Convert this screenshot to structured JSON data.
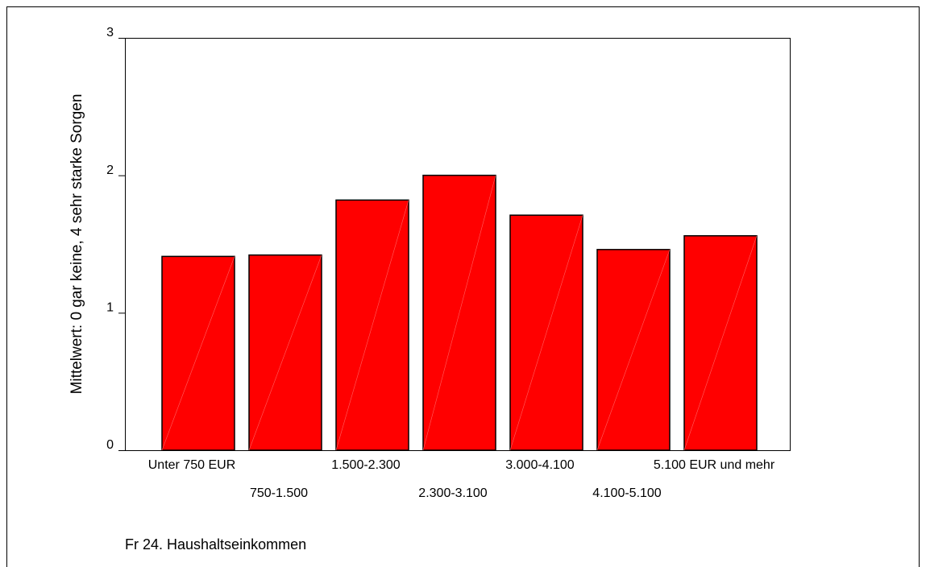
{
  "chart_data": {
    "type": "bar",
    "xlabel": "Fr 24. Haushaltseinkommen",
    "ylabel": "Mittelwert: 0 gar keine, 4 sehr starke Sorgen",
    "categories": [
      "Unter 750 EUR",
      "750-1.500",
      "1.500-2.300",
      "2.300-3.100",
      "3.000-4.100",
      "4.100-5.100",
      "5.100 EUR und mehr"
    ],
    "values": [
      1.41,
      1.42,
      1.82,
      2.0,
      1.71,
      1.46,
      1.56
    ],
    "color": "#ff0000",
    "ylim": [
      0,
      3
    ],
    "yticks": [
      0,
      1,
      2,
      3
    ]
  }
}
